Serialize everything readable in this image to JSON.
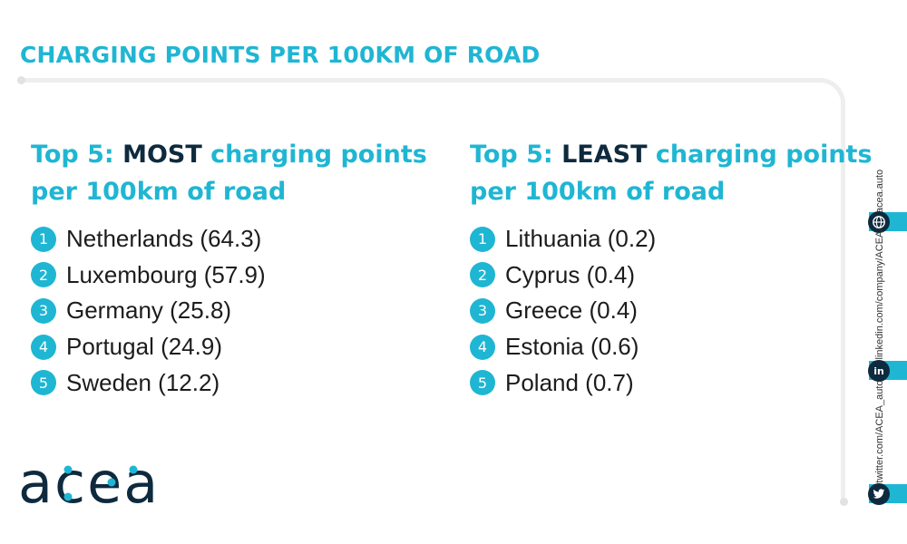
{
  "title": "CHARGING POINTS PER 100KM OF ROAD",
  "most": {
    "heading_prefix": "Top 5: ",
    "heading_emph": "MOST",
    "heading_suffix": " charging points",
    "heading_line2": "per 100km of road",
    "items": [
      {
        "num": "1",
        "label": "Netherlands (64.3)"
      },
      {
        "num": "2",
        "label": "Luxembourg (57.9)"
      },
      {
        "num": "3",
        "label": "Germany (25.8)"
      },
      {
        "num": "4",
        "label": "Portugal (24.9)"
      },
      {
        "num": "5",
        "label": "Sweden (12.2)"
      }
    ]
  },
  "least": {
    "heading_prefix": "Top 5: ",
    "heading_emph": "LEAST",
    "heading_suffix": " charging points",
    "heading_line2": "per 100km of road",
    "items": [
      {
        "num": "1",
        "label": "Lithuania (0.2)"
      },
      {
        "num": "2",
        "label": "Cyprus (0.4)"
      },
      {
        "num": "3",
        "label": "Greece (0.4)"
      },
      {
        "num": "4",
        "label": "Estonia (0.6)"
      },
      {
        "num": "5",
        "label": "Poland (0.7)"
      }
    ]
  },
  "logo": {
    "text": "acea"
  },
  "social": {
    "web": "acea.auto",
    "linkedin": "linkedin.com/company/ACEA/",
    "twitter": "twitter.com/ACEA_auto"
  },
  "colors": {
    "accent": "#1fb6d3",
    "dark": "#0e2a3e",
    "text": "#1c1c1c",
    "frame": "#eeeeee"
  }
}
